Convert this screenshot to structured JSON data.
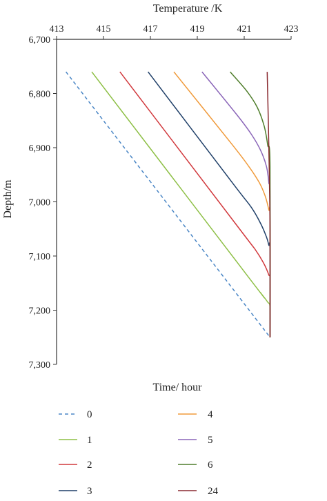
{
  "chart_data": {
    "type": "line",
    "x_axis": {
      "label": "Temperature /K",
      "position": "top",
      "range": [
        413,
        423
      ],
      "ticks": [
        413,
        415,
        417,
        419,
        421,
        423
      ],
      "tick_labels": [
        "413",
        "415",
        "417",
        "419",
        "421",
        "423"
      ]
    },
    "y_axis": {
      "label": "Depth/m",
      "inverted": true,
      "range": [
        6700,
        7300
      ],
      "ticks": [
        6700,
        6800,
        6900,
        7000,
        7100,
        7200,
        7300
      ],
      "tick_labels": [
        "6,700",
        "6,800",
        "6,900",
        "7,000",
        "7,100",
        "7,200",
        "7,300"
      ]
    },
    "legend_title": "Time/ hour",
    "legend_placement": "bottom",
    "series": [
      {
        "name": "0",
        "color": "#4a86c5",
        "dashed": true,
        "points": [
          [
            413.4,
            6760
          ],
          [
            422.1,
            7250
          ]
        ]
      },
      {
        "name": "1",
        "color": "#8dbf45",
        "dashed": false,
        "points": [
          [
            414.5,
            6760
          ],
          [
            421.2,
            7140
          ],
          [
            421.7,
            7168
          ],
          [
            422.0,
            7185
          ],
          [
            422.1,
            7195
          ],
          [
            422.1,
            7250
          ]
        ]
      },
      {
        "name": "2",
        "color": "#d1383c",
        "dashed": false,
        "points": [
          [
            415.7,
            6760
          ],
          [
            420.8,
            7050
          ],
          [
            421.5,
            7090
          ],
          [
            421.85,
            7115
          ],
          [
            422.05,
            7135
          ],
          [
            422.1,
            7145
          ],
          [
            422.1,
            7250
          ]
        ]
      },
      {
        "name": "3",
        "color": "#1f3f68",
        "dashed": false,
        "points": [
          [
            416.9,
            6760
          ],
          [
            420.5,
            6965
          ],
          [
            421.3,
            7010
          ],
          [
            421.7,
            7040
          ],
          [
            421.95,
            7065
          ],
          [
            422.05,
            7080
          ],
          [
            422.1,
            7090
          ],
          [
            422.1,
            7250
          ]
        ]
      },
      {
        "name": "4",
        "color": "#f09a3a",
        "dashed": false,
        "points": [
          [
            418.0,
            6760
          ],
          [
            420.5,
            6895
          ],
          [
            421.2,
            6935
          ],
          [
            421.65,
            6965
          ],
          [
            421.9,
            6990
          ],
          [
            422.05,
            7015
          ],
          [
            422.1,
            7030
          ],
          [
            422.1,
            7250
          ]
        ]
      },
      {
        "name": "5",
        "color": "#8a65b8",
        "dashed": false,
        "points": [
          [
            419.2,
            6760
          ],
          [
            420.7,
            6840
          ],
          [
            421.3,
            6875
          ],
          [
            421.7,
            6905
          ],
          [
            421.95,
            6935
          ],
          [
            422.05,
            6965
          ],
          [
            422.1,
            6990
          ],
          [
            422.1,
            7250
          ]
        ]
      },
      {
        "name": "6",
        "color": "#4f7d2b",
        "dashed": false,
        "points": [
          [
            420.4,
            6760
          ],
          [
            421.1,
            6795
          ],
          [
            421.55,
            6825
          ],
          [
            421.85,
            6860
          ],
          [
            422.0,
            6895
          ],
          [
            422.1,
            6935
          ],
          [
            422.1,
            7250
          ]
        ]
      },
      {
        "name": "24",
        "color": "#8a2a30",
        "dashed": false,
        "points": [
          [
            421.98,
            6760
          ],
          [
            422.05,
            6900
          ],
          [
            422.1,
            7050
          ],
          [
            422.1,
            7250
          ]
        ]
      }
    ]
  }
}
